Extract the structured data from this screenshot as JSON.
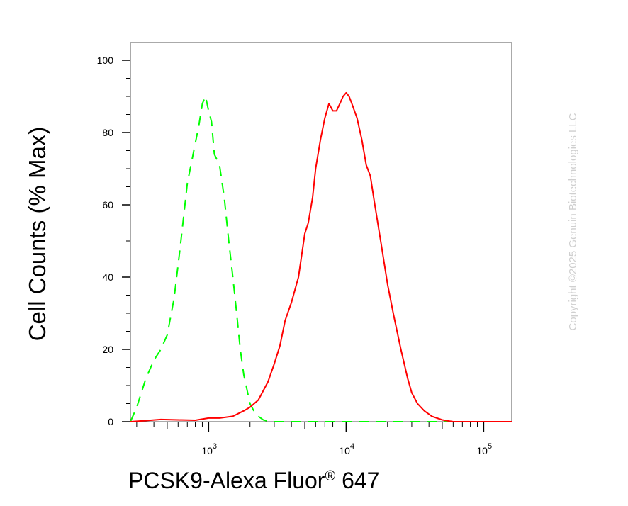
{
  "chart_data": {
    "type": "line",
    "title": "",
    "xlabel": "PCSK9-Alexa Fluor",
    "xlabel_superscript": "®",
    "xlabel_suffix": " 647",
    "ylabel": "Cell Counts (% Max)",
    "x_scale": "log",
    "xlim": [
      270,
      160000
    ],
    "ylim": [
      0,
      100
    ],
    "y_ticks": [
      0,
      20,
      40,
      60,
      80,
      100
    ],
    "y_tick_labels": [
      "0",
      "20",
      "40",
      "60",
      "80",
      "100"
    ],
    "x_ticks": [
      {
        "value": 1000,
        "base": "10",
        "exp": "3"
      },
      {
        "value": 10000,
        "base": "10",
        "exp": "4"
      },
      {
        "value": 100000,
        "base": "10",
        "exp": "5"
      }
    ],
    "grid": false,
    "legend": "none",
    "series": [
      {
        "color": "#00ff00",
        "style": "dashed",
        "x": [
          270,
          300,
          350,
          400,
          450,
          500,
          560,
          620,
          700,
          800,
          850,
          900,
          950,
          1000,
          1050,
          1100,
          1200,
          1300,
          1400,
          1500,
          1600,
          1700,
          1800,
          2000,
          2200,
          2500,
          2800,
          3500,
          5000,
          10000,
          20000,
          50000,
          160000
        ],
        "y": [
          0,
          4,
          12,
          17,
          20,
          24,
          34,
          48,
          66,
          77,
          82,
          88,
          90,
          86,
          83,
          74,
          71,
          62,
          50,
          40,
          30,
          20,
          13,
          5,
          2,
          0.5,
          0,
          0,
          0,
          0,
          0,
          0,
          0
        ]
      },
      {
        "color": "#ff0000",
        "style": "solid",
        "x": [
          270,
          350,
          450,
          600,
          800,
          1000,
          1200,
          1500,
          1800,
          2000,
          2300,
          2700,
          3000,
          3300,
          3600,
          4000,
          4500,
          5000,
          5300,
          5700,
          6000,
          6500,
          7000,
          7500,
          8000,
          8500,
          9000,
          9500,
          10000,
          10500,
          11000,
          12000,
          13000,
          14000,
          15000,
          16000,
          18000,
          20000,
          22000,
          25000,
          28000,
          30000,
          33000,
          37000,
          42000,
          50000,
          60000,
          80000,
          100000,
          160000
        ],
        "y": [
          0,
          0.3,
          0.6,
          0.5,
          0.4,
          1,
          1,
          1.5,
          3,
          4,
          6,
          11,
          16,
          21,
          28,
          33,
          40,
          52,
          55,
          62,
          70,
          78,
          84,
          88,
          86,
          86,
          88,
          90,
          91,
          90,
          88,
          84,
          78,
          71,
          68,
          61,
          49,
          38,
          30,
          20,
          12,
          8,
          5,
          3,
          1.5,
          0.5,
          0,
          0,
          0,
          0
        ]
      }
    ]
  },
  "watermark": "Copyright ©2025 Genuin Biotechnologies LLC"
}
